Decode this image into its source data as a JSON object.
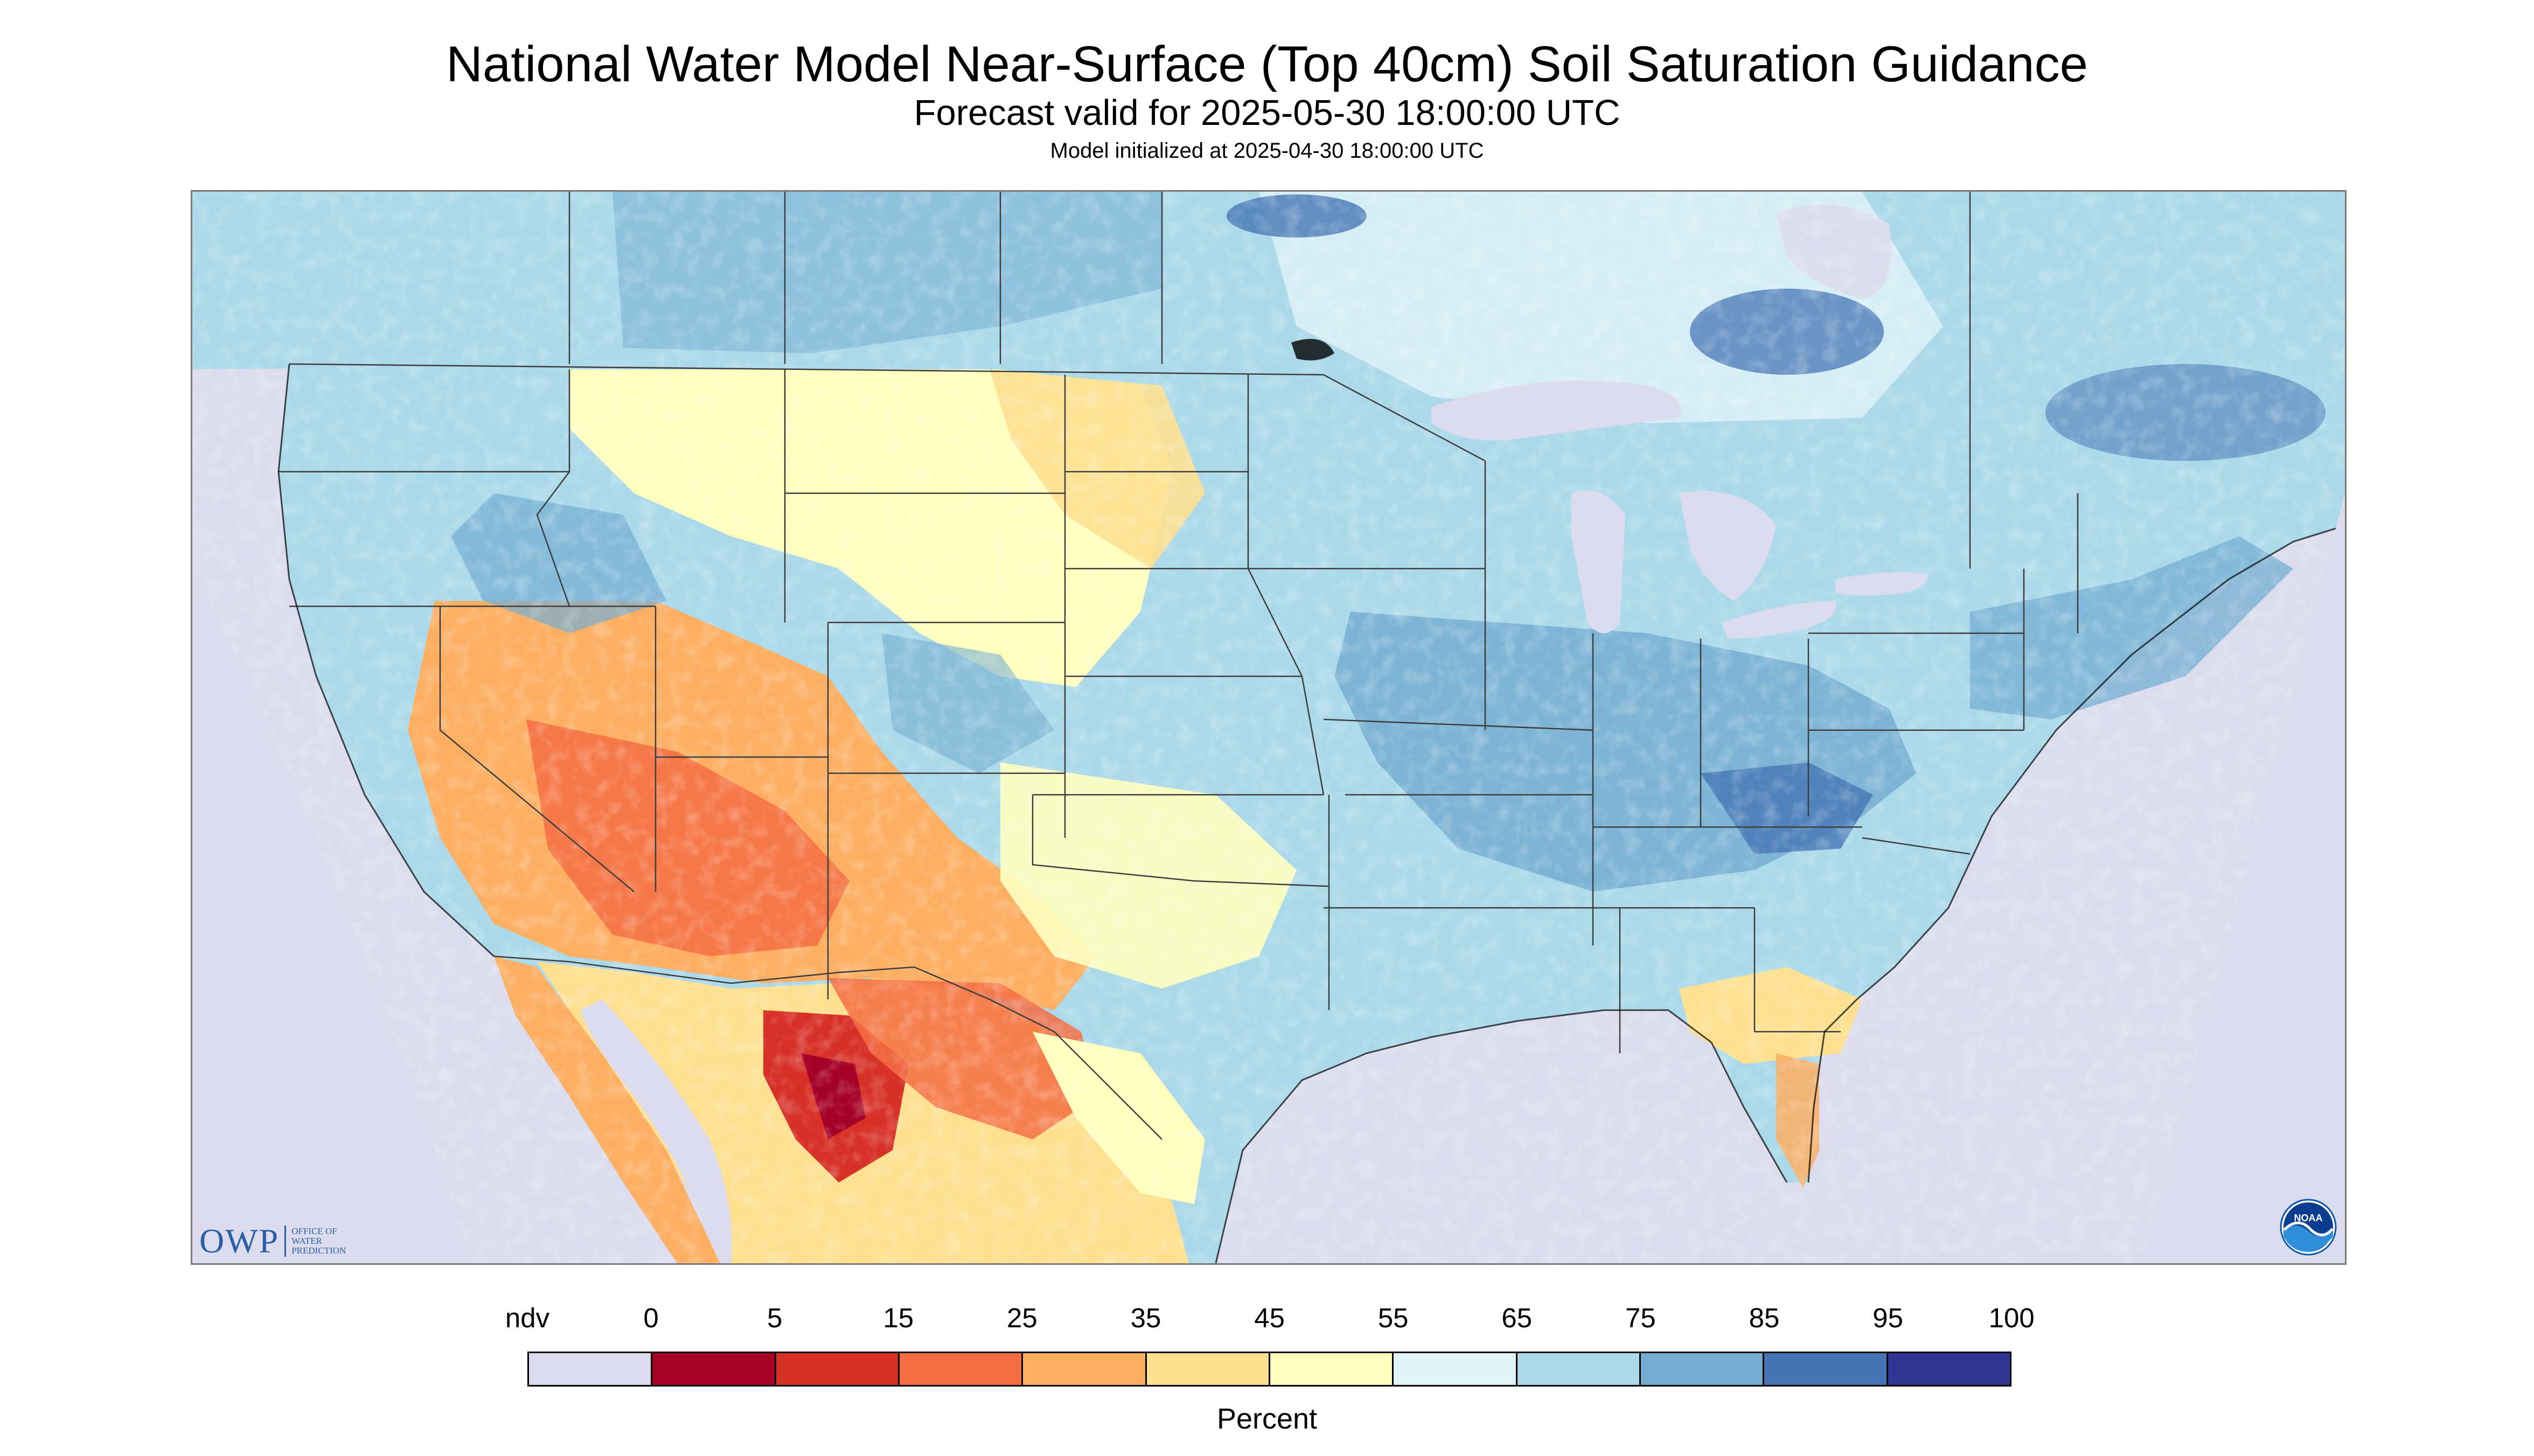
{
  "title": "National Water Model Near-Surface (Top 40cm) Soil Saturation Guidance",
  "subtitle": "Forecast valid for 2025-05-30 18:00:00 UTC",
  "init_line": "Model initialized at 2025-04-30 18:00:00 UTC",
  "units_label": "Percent",
  "legend": {
    "labels": [
      "ndv",
      "0",
      "5",
      "15",
      "25",
      "35",
      "45",
      "55",
      "65",
      "75",
      "85",
      "95",
      "100"
    ],
    "colors": [
      "#dcdcee",
      "#a50026",
      "#d73027",
      "#f46d43",
      "#fdae61",
      "#fee090",
      "#ffffbf",
      "#e0f3f8",
      "#abd9e9",
      "#74add1",
      "#4575b4",
      "#313695"
    ]
  },
  "logos": {
    "owp_mark": "OWP",
    "owp_lines": [
      "OFFICE OF",
      "WATER",
      "PREDICTION"
    ],
    "noaa_mark": "NOAA"
  },
  "map_colors": {
    "nodata": "#dcdcee",
    "water": "#dcdcee",
    "border": "#3c3c3c"
  }
}
